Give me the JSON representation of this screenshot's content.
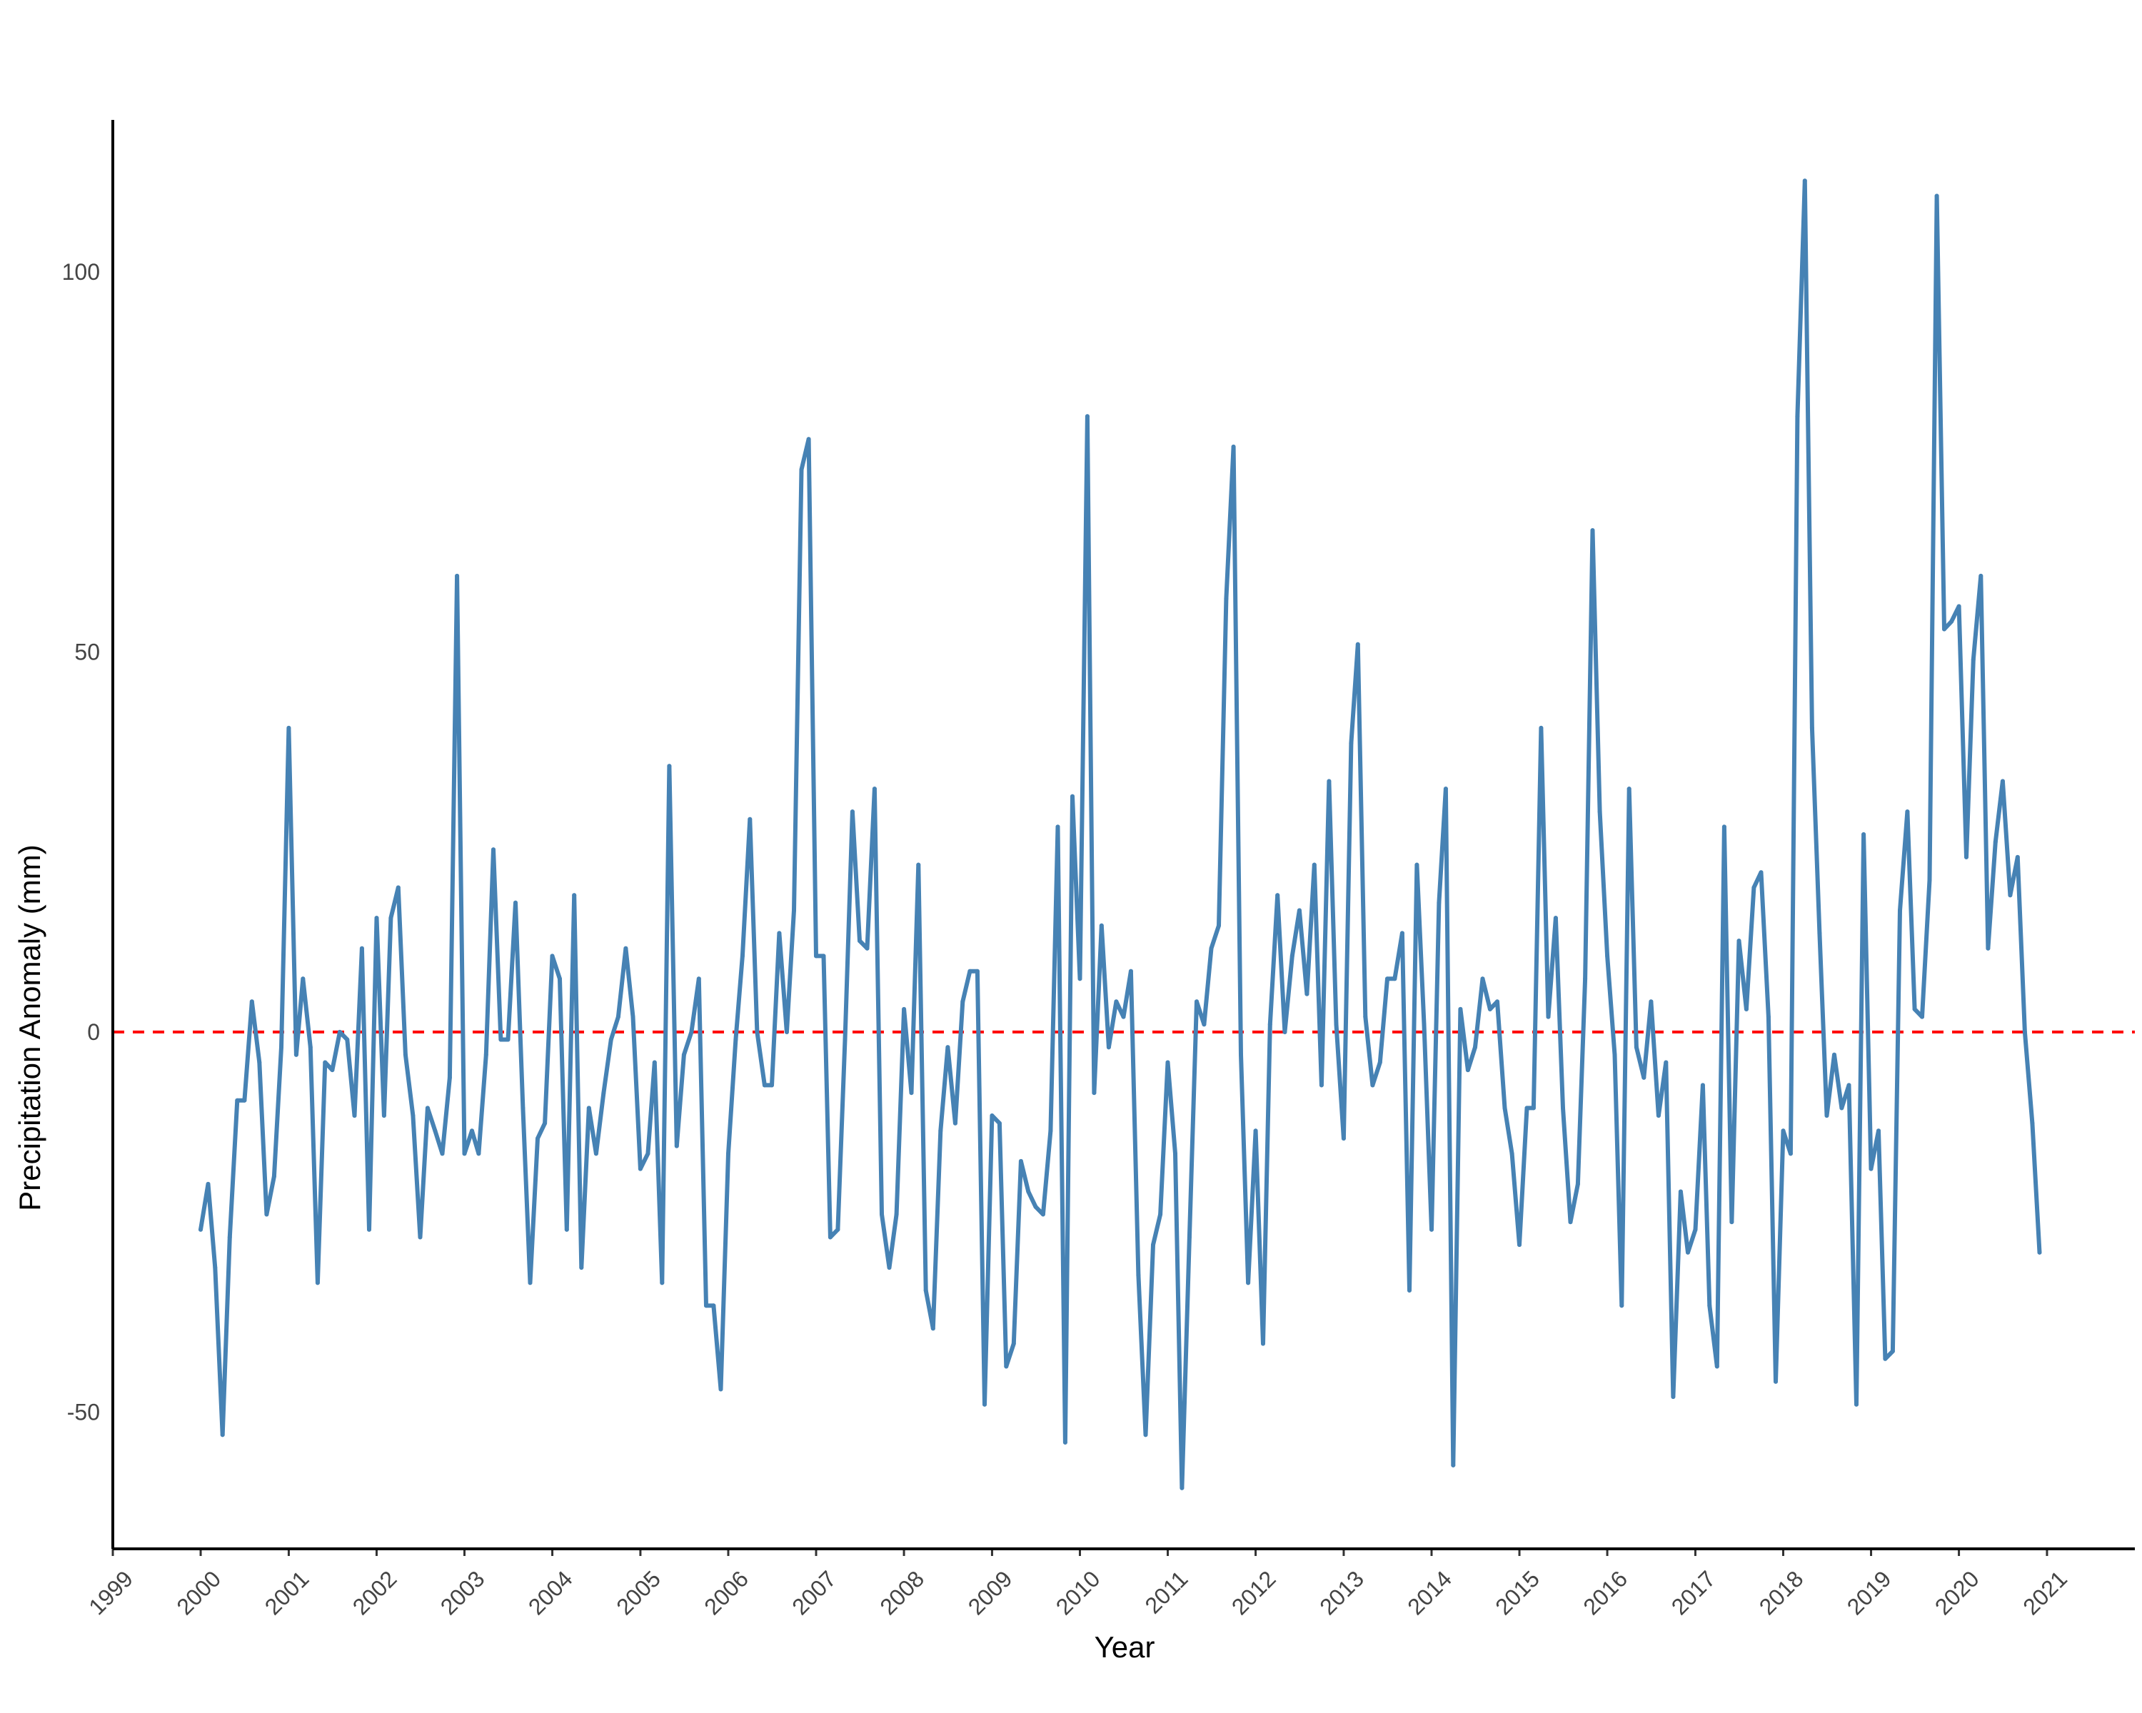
{
  "chart_data": {
    "type": "line",
    "title": "",
    "xlabel": "Year",
    "ylabel": "Precipitation Anomaly (mm)",
    "xlim": [
      "1999-01-01",
      "2022-01-01"
    ],
    "ylim": [
      -68,
      120
    ],
    "x_ticks": [
      "1999",
      "2000",
      "2001",
      "2002",
      "2003",
      "2004",
      "2005",
      "2006",
      "2007",
      "2008",
      "2009",
      "2010",
      "2011",
      "2012",
      "2013",
      "2014",
      "2015",
      "2016",
      "2017",
      "2018",
      "2019",
      "2020",
      "2021"
    ],
    "y_ticks": [
      -50,
      0,
      50,
      100
    ],
    "y_tick_labels": [
      "-50",
      "0",
      "50",
      "100"
    ],
    "grid": false,
    "legend": "none",
    "reference_line": {
      "y": 0,
      "style": "dashed",
      "color": "#ff0000"
    },
    "series": [
      {
        "color": "#4682b4",
        "start": "2000-01",
        "frequency": "monthly",
        "values": [
          -26,
          -20,
          -31,
          -53,
          -27,
          -9,
          -9,
          4,
          -4,
          -24,
          -19,
          -2,
          40,
          -3,
          7,
          -2,
          -33,
          -4,
          -5,
          0,
          -1,
          -11,
          11,
          -26,
          15,
          -11,
          15,
          19,
          -3,
          -11,
          -27,
          -10,
          -13,
          -16,
          -6,
          60,
          -16,
          -13,
          -16,
          -3,
          24,
          -1,
          -1,
          17,
          -10,
          -33,
          -14,
          -12,
          10,
          7,
          -26,
          18,
          -31,
          -10,
          -16,
          -8,
          -1,
          2,
          11,
          2,
          -18,
          -16,
          -4,
          -33,
          35,
          -15,
          -3,
          0,
          7,
          -36,
          -36,
          -47,
          -16,
          -1,
          10,
          28,
          0,
          -7,
          -7,
          13,
          0,
          16,
          74,
          78,
          10,
          10,
          -27,
          -26,
          -1,
          29,
          12,
          11,
          32,
          -24,
          -31,
          -24,
          3,
          -8,
          22,
          -34,
          -39,
          -13,
          -2,
          -12,
          4,
          8,
          8,
          -49,
          -11,
          -12,
          -44,
          -41,
          -17,
          -21,
          -23,
          -24,
          -13,
          27,
          -54,
          31,
          7,
          81,
          -8,
          14,
          -2,
          4,
          2,
          8,
          -32,
          -53,
          -28,
          -24,
          -4,
          -16,
          -60,
          -27,
          4,
          1,
          11,
          14,
          57,
          77,
          -3,
          -33,
          -13,
          -41,
          1,
          18,
          0,
          10,
          16,
          5,
          22,
          -7,
          33,
          1,
          -14,
          38,
          51,
          2,
          -7,
          -4,
          7,
          7,
          13,
          -34,
          22,
          1,
          -26,
          17,
          32,
          -57,
          3,
          -5,
          -2,
          7,
          3,
          4,
          -10,
          -16,
          -28,
          -10,
          -10,
          40,
          2,
          15,
          -10,
          -25,
          -20,
          7,
          66,
          29,
          10,
          -3,
          -36,
          32,
          -2,
          -6,
          4,
          -11,
          -4,
          -48,
          -21,
          -29,
          -26,
          -7,
          -36,
          -44,
          27,
          -25,
          12,
          3,
          19,
          21,
          2,
          -46,
          -13,
          -16,
          81,
          112,
          40,
          13,
          -11,
          -3,
          -10,
          -7,
          -49,
          26,
          -18,
          -13,
          -43,
          -42,
          16,
          29,
          3,
          2,
          20,
          110,
          53,
          54,
          56,
          23,
          49,
          60,
          11,
          25,
          33,
          18,
          23,
          0,
          -12,
          -29
        ]
      }
    ]
  }
}
